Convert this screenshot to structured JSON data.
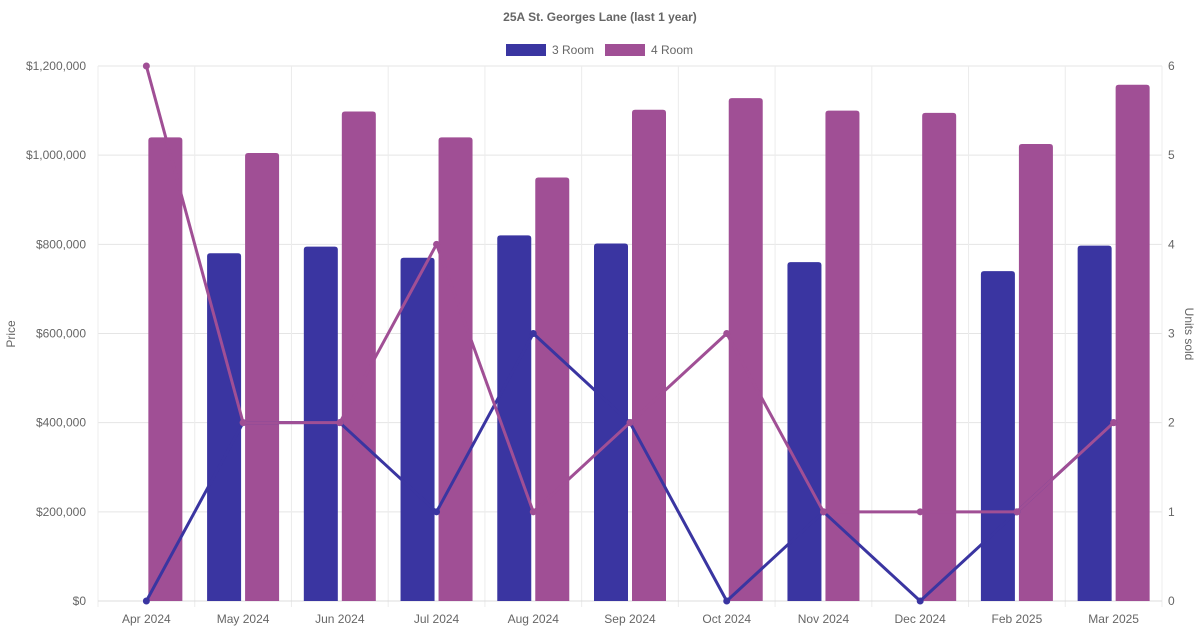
{
  "chart_data": {
    "type": "bar",
    "title": "25A St. Georges Lane (last 1 year)",
    "categories": [
      "Apr 2024",
      "May 2024",
      "Jun 2024",
      "Jul 2024",
      "Aug 2024",
      "Sep 2024",
      "Oct 2024",
      "Nov 2024",
      "Dec 2024",
      "Feb 2025",
      "Mar 2025"
    ],
    "y_left": {
      "label": "Price",
      "min": 0,
      "max": 1200000,
      "ticks": [
        0,
        200000,
        400000,
        600000,
        800000,
        1000000,
        1200000
      ],
      "tick_labels": [
        "$0",
        "$200,000",
        "$400,000",
        "$600,000",
        "$800,000",
        "$1,000,000",
        "$1,200,000"
      ]
    },
    "y_right": {
      "label": "Units sold",
      "min": 0,
      "max": 6,
      "ticks": [
        0,
        1,
        2,
        3,
        4,
        5,
        6
      ],
      "tick_labels": [
        "0",
        "1",
        "2",
        "3",
        "4",
        "5",
        "6"
      ]
    },
    "grid": true,
    "legend_position": "top",
    "bar_series": [
      {
        "name": "3 Room",
        "color": "#3a35a1",
        "values": [
          null,
          780000,
          795000,
          770000,
          820000,
          802000,
          null,
          760000,
          null,
          740000,
          797000
        ]
      },
      {
        "name": "4 Room",
        "color": "#a04f95",
        "values": [
          1040000,
          1005000,
          1098000,
          1040000,
          950000,
          1102000,
          1128000,
          1100000,
          1095000,
          1025000,
          1158000
        ]
      }
    ],
    "line_series": [
      {
        "name": "3 Room units sold",
        "color": "#3a35a1",
        "values": [
          0,
          2,
          2,
          1,
          3,
          2,
          0,
          1,
          0,
          1,
          2
        ]
      },
      {
        "name": "4 Room units sold",
        "color": "#a04f95",
        "values": [
          6,
          2,
          2,
          4,
          1,
          2,
          3,
          1,
          1,
          1,
          2
        ]
      }
    ]
  }
}
